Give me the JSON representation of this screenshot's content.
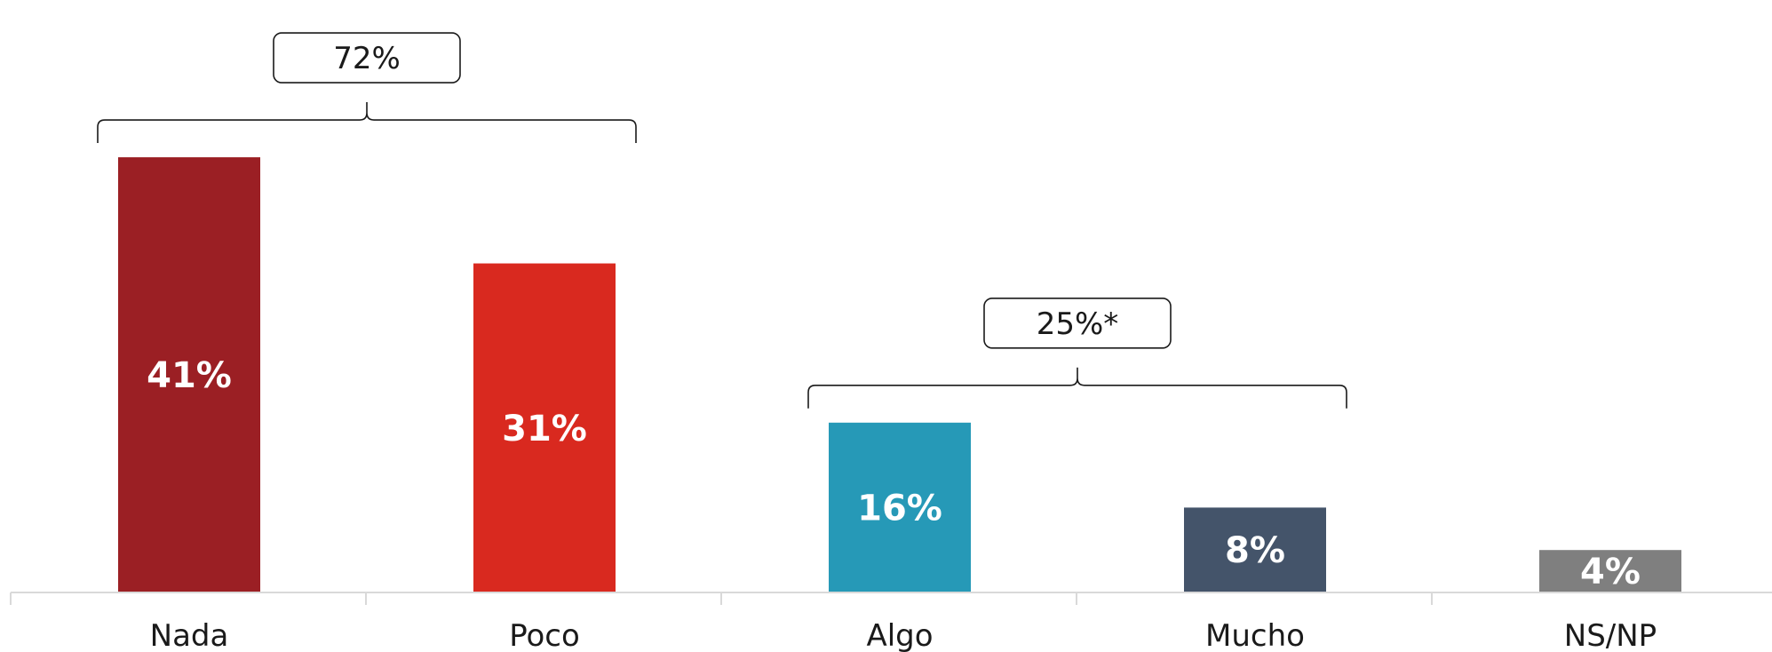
{
  "chart_data": {
    "type": "bar",
    "categories": [
      "Nada",
      "Poco",
      "Algo",
      "Mucho",
      "NS/NP"
    ],
    "values": [
      41,
      31,
      16,
      8,
      4
    ],
    "value_labels": [
      "41%",
      "31%",
      "16%",
      "8%",
      "4%"
    ],
    "colors": [
      "#9b1f24",
      "#d9291f",
      "#2699b7",
      "#44546a",
      "#7f7f7f"
    ],
    "ylim": [
      0,
      45
    ],
    "grid": false,
    "legend": "none",
    "groups": [
      {
        "label": "72%",
        "from": 0,
        "to": 1
      },
      {
        "label": "25%*",
        "from": 2,
        "to": 3
      }
    ]
  }
}
